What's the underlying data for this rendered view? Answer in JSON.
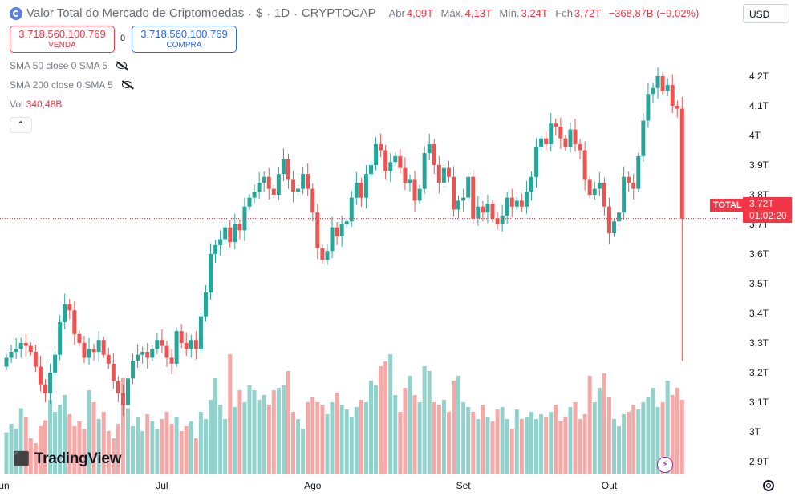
{
  "header": {
    "title": "Valor Total do Mercado de Criptomoedas",
    "currency_symbol": "$",
    "interval": "1D",
    "exchange": "CRYPTOCAP",
    "open_label": "Abr",
    "open_value": "4,09T",
    "high_label": "Máx.",
    "high_value": "4,13T",
    "low_label": "Mín.",
    "low_value": "3,24T",
    "close_label": "Fch",
    "close_value": "3,72T",
    "change": "−368,87B (−9,02%)"
  },
  "currency_selector": "USD",
  "trade": {
    "sell_price": "3.718.560.100.769",
    "sell_label": "VENDA",
    "spread": "0",
    "buy_price": "3.718.560.100.769",
    "buy_label": "COMPRA"
  },
  "indicators": [
    {
      "label": "SMA 50 close 0 SMA 5"
    },
    {
      "label": "SMA 200 close 0 SMA 5"
    }
  ],
  "volume": {
    "label": "Vol",
    "value": "340,48B"
  },
  "collapse_icon": "chevron-up-icon",
  "last_price": {
    "tag": "TOTAL",
    "value": "3,72T",
    "countdown": "01:02:20"
  },
  "branding": "TradingView",
  "colors": {
    "up": "#26a69a",
    "down": "#ef5350",
    "up_vol": "#92d2cc",
    "down_vol": "#f6a8a6",
    "accent": "#2962ff"
  },
  "chart_data": {
    "type": "candlestick",
    "title": "Valor Total do Mercado de Criptomoedas",
    "ylim": [
      2.87,
      4.3
    ],
    "y_ticks": [
      4.2,
      4.1,
      4.0,
      3.9,
      3.8,
      3.7,
      3.6,
      3.5,
      3.4,
      3.3,
      3.2,
      3.1,
      3.0,
      2.9
    ],
    "y_tick_labels": [
      "4,2T",
      "4,1T",
      "4T",
      "3,9T",
      "3,8T",
      "3,7T",
      "3,6T",
      "3,5T",
      "3,4T",
      "3,3T",
      "3,2T",
      "3,1T",
      "3T",
      "2,9T"
    ],
    "x_labels": [
      {
        "label": "Jun",
        "index": -1
      },
      {
        "label": "Jul",
        "index": 32
      },
      {
        "label": "Ago",
        "index": 63
      },
      {
        "label": "Set",
        "index": 94
      },
      {
        "label": "Out",
        "index": 124
      }
    ],
    "series_close": [
      3.25,
      3.27,
      3.28,
      3.3,
      3.29,
      3.27,
      3.22,
      3.16,
      3.13,
      3.2,
      3.26,
      3.37,
      3.43,
      3.41,
      3.33,
      3.3,
      3.25,
      3.28,
      3.27,
      3.31,
      3.26,
      3.23,
      3.17,
      3.13,
      3.09,
      3.18,
      3.24,
      3.26,
      3.27,
      3.25,
      3.28,
      3.31,
      3.29,
      3.25,
      3.23,
      3.34,
      3.3,
      3.28,
      3.31,
      3.28,
      3.39,
      3.47,
      3.6,
      3.63,
      3.65,
      3.69,
      3.64,
      3.7,
      3.68,
      3.76,
      3.79,
      3.81,
      3.84,
      3.86,
      3.82,
      3.8,
      3.87,
      3.92,
      3.85,
      3.81,
      3.82,
      3.87,
      3.82,
      3.74,
      3.62,
      3.58,
      3.61,
      3.69,
      3.66,
      3.7,
      3.71,
      3.79,
      3.84,
      3.79,
      3.87,
      3.9,
      3.97,
      3.95,
      3.88,
      3.91,
      3.93,
      3.89,
      3.84,
      3.85,
      3.78,
      3.82,
      3.94,
      3.97,
      3.9,
      3.84,
      3.89,
      3.86,
      3.75,
      3.78,
      3.79,
      3.86,
      3.72,
      3.76,
      3.74,
      3.77,
      3.72,
      3.7,
      3.73,
      3.79,
      3.76,
      3.78,
      3.76,
      3.81,
      3.86,
      3.96,
      3.99,
      3.97,
      4.04,
      4.03,
      3.99,
      3.96,
      4.02,
      3.97,
      3.95,
      3.85,
      3.8,
      3.82,
      3.84,
      3.76,
      3.67,
      3.71,
      3.74,
      3.86,
      3.84,
      3.82,
      3.93,
      4.05,
      4.14,
      4.16,
      4.2,
      4.15,
      4.17,
      4.1,
      4.09,
      3.72
    ],
    "series_open": [
      3.22,
      3.25,
      3.27,
      3.28,
      3.3,
      3.29,
      3.27,
      3.22,
      3.16,
      3.13,
      3.2,
      3.26,
      3.37,
      3.43,
      3.41,
      3.33,
      3.3,
      3.25,
      3.28,
      3.27,
      3.31,
      3.26,
      3.23,
      3.17,
      3.13,
      3.09,
      3.18,
      3.24,
      3.26,
      3.27,
      3.25,
      3.28,
      3.31,
      3.29,
      3.25,
      3.23,
      3.34,
      3.3,
      3.28,
      3.31,
      3.28,
      3.39,
      3.47,
      3.6,
      3.63,
      3.65,
      3.69,
      3.64,
      3.7,
      3.68,
      3.76,
      3.79,
      3.81,
      3.84,
      3.86,
      3.82,
      3.8,
      3.87,
      3.92,
      3.85,
      3.81,
      3.82,
      3.87,
      3.82,
      3.74,
      3.62,
      3.58,
      3.61,
      3.69,
      3.66,
      3.7,
      3.71,
      3.79,
      3.84,
      3.79,
      3.87,
      3.9,
      3.97,
      3.95,
      3.88,
      3.91,
      3.93,
      3.89,
      3.84,
      3.85,
      3.78,
      3.82,
      3.94,
      3.97,
      3.9,
      3.84,
      3.89,
      3.86,
      3.75,
      3.78,
      3.79,
      3.86,
      3.72,
      3.76,
      3.74,
      3.77,
      3.72,
      3.7,
      3.73,
      3.79,
      3.76,
      3.78,
      3.76,
      3.81,
      3.86,
      3.96,
      3.99,
      3.97,
      4.04,
      4.03,
      3.99,
      3.96,
      4.02,
      3.97,
      3.95,
      3.85,
      3.8,
      3.82,
      3.84,
      3.76,
      3.67,
      3.71,
      3.74,
      3.86,
      3.84,
      3.82,
      3.93,
      4.05,
      4.14,
      4.16,
      4.2,
      4.15,
      4.17,
      4.1,
      4.09
    ],
    "volume_relative": [
      0.35,
      0.42,
      0.38,
      0.55,
      0.48,
      0.3,
      0.26,
      0.4,
      0.45,
      0.62,
      0.52,
      0.58,
      0.66,
      0.5,
      0.4,
      0.44,
      0.38,
      0.7,
      0.6,
      0.46,
      0.52,
      0.36,
      0.3,
      0.42,
      0.8,
      0.55,
      0.4,
      0.48,
      0.36,
      0.5,
      0.44,
      0.38,
      0.46,
      0.52,
      0.42,
      0.48,
      0.36,
      0.4,
      0.44,
      0.3,
      0.52,
      0.46,
      0.62,
      0.8,
      0.58,
      0.46,
      1.0,
      0.56,
      0.7,
      0.6,
      0.74,
      0.7,
      0.62,
      0.66,
      0.58,
      0.7,
      0.72,
      0.74,
      0.86,
      0.52,
      0.46,
      0.38,
      0.6,
      0.64,
      0.6,
      0.58,
      0.5,
      0.6,
      0.68,
      0.58,
      0.54,
      0.48,
      0.56,
      0.62,
      0.6,
      0.78,
      0.74,
      0.9,
      0.94,
      1.0,
      0.66,
      0.52,
      0.72,
      0.82,
      0.66,
      0.6,
      0.9,
      0.86,
      0.6,
      0.58,
      0.62,
      0.52,
      0.78,
      0.82,
      0.6,
      0.56,
      0.52,
      0.46,
      0.58,
      0.48,
      0.44,
      0.54,
      0.56,
      0.46,
      0.38,
      0.54,
      0.46,
      0.48,
      0.52,
      0.46,
      0.5,
      0.48,
      0.52,
      0.58,
      0.44,
      0.48,
      0.56,
      0.6,
      0.46,
      0.5,
      0.82,
      0.6,
      0.72,
      0.84,
      0.64,
      0.46,
      0.4,
      0.5,
      0.52,
      0.58,
      0.54,
      0.6,
      0.64,
      0.72,
      0.56,
      0.6,
      0.78,
      0.66,
      0.72,
      0.62
    ]
  }
}
